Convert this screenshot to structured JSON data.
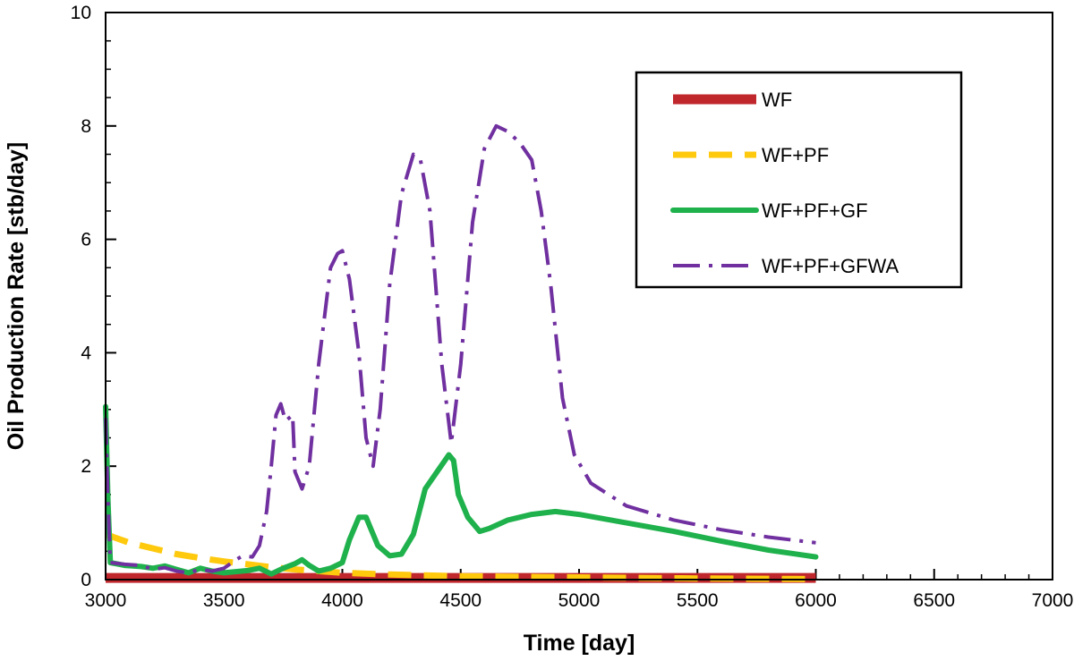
{
  "chart_data": {
    "type": "line",
    "title": "",
    "xlabel": "Time [day]",
    "ylabel": "Oil Production Rate [stb/day]",
    "xlim": [
      3000,
      7000
    ],
    "ylim": [
      0,
      10
    ],
    "x_ticks": [
      3000,
      3500,
      4000,
      4500,
      5000,
      5500,
      6000,
      6500,
      7000
    ],
    "y_ticks": [
      0,
      2,
      4,
      6,
      8,
      10
    ],
    "x_minor_step": 100,
    "y_minor_step": 0.5,
    "grid": false,
    "legend_position": "top-right",
    "series": [
      {
        "name": "WF",
        "color": "#c0272d",
        "style": "solid-thick",
        "points": [
          [
            3000,
            0.03
          ],
          [
            3200,
            0.03
          ],
          [
            4000,
            0.03
          ],
          [
            5000,
            0.03
          ],
          [
            6000,
            0.03
          ]
        ]
      },
      {
        "name": "WF+PF",
        "color": "#ffc90e",
        "style": "dashed",
        "points": [
          [
            3000,
            0.8
          ],
          [
            3100,
            0.65
          ],
          [
            3200,
            0.55
          ],
          [
            3300,
            0.45
          ],
          [
            3400,
            0.38
          ],
          [
            3500,
            0.32
          ],
          [
            3600,
            0.27
          ],
          [
            3700,
            0.22
          ],
          [
            3800,
            0.18
          ],
          [
            3900,
            0.15
          ],
          [
            4000,
            0.12
          ],
          [
            4200,
            0.09
          ],
          [
            4500,
            0.06
          ],
          [
            5000,
            0.04
          ],
          [
            5500,
            0.02
          ],
          [
            6000,
            0.01
          ]
        ]
      },
      {
        "name": "WF+PF+GF",
        "color": "#1fb14c",
        "style": "solid",
        "points": [
          [
            3000,
            3.05
          ],
          [
            3010,
            1.4
          ],
          [
            3020,
            0.3
          ],
          [
            3080,
            0.25
          ],
          [
            3150,
            0.23
          ],
          [
            3200,
            0.2
          ],
          [
            3250,
            0.24
          ],
          [
            3300,
            0.18
          ],
          [
            3350,
            0.12
          ],
          [
            3400,
            0.2
          ],
          [
            3450,
            0.15
          ],
          [
            3500,
            0.12
          ],
          [
            3550,
            0.14
          ],
          [
            3600,
            0.16
          ],
          [
            3650,
            0.2
          ],
          [
            3700,
            0.1
          ],
          [
            3750,
            0.2
          ],
          [
            3800,
            0.28
          ],
          [
            3830,
            0.35
          ],
          [
            3860,
            0.25
          ],
          [
            3900,
            0.15
          ],
          [
            3950,
            0.2
          ],
          [
            4000,
            0.3
          ],
          [
            4030,
            0.7
          ],
          [
            4070,
            1.1
          ],
          [
            4100,
            1.1
          ],
          [
            4120,
            0.9
          ],
          [
            4150,
            0.6
          ],
          [
            4200,
            0.42
          ],
          [
            4250,
            0.45
          ],
          [
            4300,
            0.8
          ],
          [
            4350,
            1.6
          ],
          [
            4400,
            1.9
          ],
          [
            4450,
            2.2
          ],
          [
            4470,
            2.1
          ],
          [
            4490,
            1.5
          ],
          [
            4530,
            1.1
          ],
          [
            4580,
            0.85
          ],
          [
            4620,
            0.9
          ],
          [
            4700,
            1.05
          ],
          [
            4800,
            1.15
          ],
          [
            4900,
            1.2
          ],
          [
            5000,
            1.15
          ],
          [
            5200,
            1.0
          ],
          [
            5400,
            0.85
          ],
          [
            5600,
            0.68
          ],
          [
            5800,
            0.52
          ],
          [
            6000,
            0.4
          ]
        ]
      },
      {
        "name": "WF+PF+GFWA",
        "color": "#7030a0",
        "style": "dash-dot",
        "points": [
          [
            3000,
            2.85
          ],
          [
            3010,
            1.4
          ],
          [
            3020,
            0.3
          ],
          [
            3080,
            0.27
          ],
          [
            3150,
            0.25
          ],
          [
            3200,
            0.18
          ],
          [
            3250,
            0.21
          ],
          [
            3300,
            0.15
          ],
          [
            3350,
            0.12
          ],
          [
            3400,
            0.18
          ],
          [
            3450,
            0.15
          ],
          [
            3500,
            0.2
          ],
          [
            3550,
            0.35
          ],
          [
            3580,
            0.42
          ],
          [
            3620,
            0.4
          ],
          [
            3650,
            0.6
          ],
          [
            3680,
            1.2
          ],
          [
            3700,
            2.0
          ],
          [
            3720,
            2.9
          ],
          [
            3740,
            3.1
          ],
          [
            3760,
            2.8
          ],
          [
            3790,
            2.9
          ],
          [
            3800,
            1.9
          ],
          [
            3830,
            1.6
          ],
          [
            3860,
            2.0
          ],
          [
            3900,
            3.8
          ],
          [
            3950,
            5.5
          ],
          [
            3980,
            5.75
          ],
          [
            4000,
            5.8
          ],
          [
            4030,
            5.3
          ],
          [
            4070,
            4.0
          ],
          [
            4100,
            2.5
          ],
          [
            4130,
            2.0
          ],
          [
            4160,
            3.0
          ],
          [
            4200,
            5.2
          ],
          [
            4250,
            6.8
          ],
          [
            4300,
            7.5
          ],
          [
            4330,
            7.4
          ],
          [
            4370,
            6.5
          ],
          [
            4420,
            3.8
          ],
          [
            4460,
            2.4
          ],
          [
            4500,
            3.8
          ],
          [
            4550,
            6.3
          ],
          [
            4600,
            7.6
          ],
          [
            4650,
            8.0
          ],
          [
            4700,
            7.9
          ],
          [
            4750,
            7.7
          ],
          [
            4800,
            7.4
          ],
          [
            4840,
            6.5
          ],
          [
            4880,
            5.2
          ],
          [
            4930,
            3.2
          ],
          [
            4980,
            2.2
          ],
          [
            5050,
            1.7
          ],
          [
            5200,
            1.3
          ],
          [
            5400,
            1.05
          ],
          [
            5600,
            0.88
          ],
          [
            5800,
            0.75
          ],
          [
            6000,
            0.65
          ]
        ]
      }
    ]
  }
}
